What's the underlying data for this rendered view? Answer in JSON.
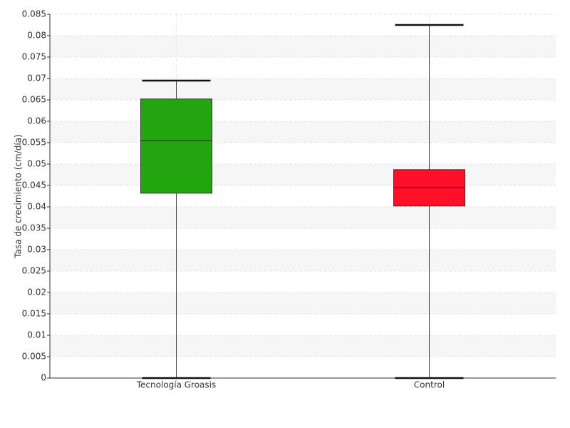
{
  "chart_data": {
    "type": "box",
    "ylabel": "Tasa de crecimiento (cm/día)",
    "categories": [
      "Tecnología Groasis",
      "Control"
    ],
    "boxes": [
      {
        "min": 0,
        "q1": 0.0432,
        "median": 0.0555,
        "q3": 0.0652,
        "max": 0.0695,
        "color": "#22a50f"
      },
      {
        "min": 0,
        "q1": 0.0402,
        "median": 0.0445,
        "q3": 0.0487,
        "max": 0.0825,
        "color": "#ff1028"
      }
    ],
    "ylim": [
      0,
      0.085
    ],
    "yticks": [
      0,
      0.005,
      0.01,
      0.015,
      0.02,
      0.025,
      0.03,
      0.035,
      0.04,
      0.045,
      0.05,
      0.055,
      0.06,
      0.065,
      0.07,
      0.075,
      0.08,
      0.085
    ],
    "grid": true
  }
}
